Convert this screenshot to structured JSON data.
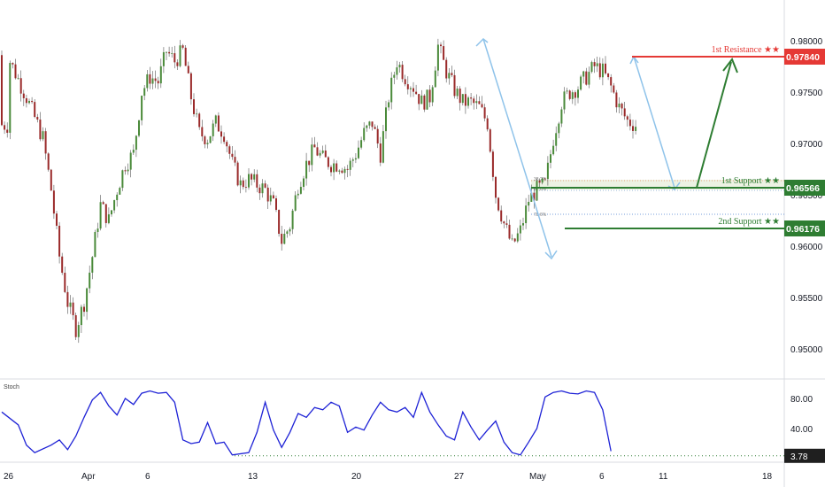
{
  "chart_data": [
    {
      "type": "candlestick",
      "title": "",
      "y_ticks": [
        "0.98000",
        "0.97500",
        "0.97000",
        "0.96500",
        "0.96000",
        "0.95500",
        "0.95000"
      ],
      "ylim": [
        0.947,
        0.9827
      ],
      "x_ticks": [
        "26",
        "Apr",
        "6",
        "13",
        "20",
        "27",
        "May",
        "6",
        "11",
        "18"
      ],
      "grid": false,
      "series": [
        {
          "values": [
            {
              "x": 1,
              "y": 0.978
            },
            {
              "x": 3,
              "y": 0.9745
            },
            {
              "x": 5,
              "y": 0.9705
            },
            {
              "x": 6,
              "y": 0.9655
            },
            {
              "x": 7,
              "y": 0.959
            },
            {
              "x": 8,
              "y": 0.9545
            },
            {
              "x": 9,
              "y": 0.952
            },
            {
              "x": 10,
              "y": 0.9545
            },
            {
              "x": 11,
              "y": 0.959
            },
            {
              "x": 12,
              "y": 0.964
            },
            {
              "x": 13,
              "y": 0.9625
            },
            {
              "x": 14,
              "y": 0.9655
            },
            {
              "x": 15,
              "y": 0.968
            },
            {
              "x": 16,
              "y": 0.969
            },
            {
              "x": 17,
              "y": 0.975
            },
            {
              "x": 18,
              "y": 0.9765
            },
            {
              "x": 19,
              "y": 0.976
            },
            {
              "x": 20,
              "y": 0.979
            },
            {
              "x": 21,
              "y": 0.978
            },
            {
              "x": 22,
              "y": 0.979
            },
            {
              "x": 23,
              "y": 0.9745
            },
            {
              "x": 24,
              "y": 0.971
            },
            {
              "x": 25,
              "y": 0.9705
            },
            {
              "x": 26,
              "y": 0.972
            },
            {
              "x": 27,
              "y": 0.971
            },
            {
              "x": 28,
              "y": 0.968
            },
            {
              "x": 29,
              "y": 0.966
            },
            {
              "x": 30,
              "y": 0.9665
            },
            {
              "x": 31,
              "y": 0.966
            },
            {
              "x": 32,
              "y": 0.9655
            },
            {
              "x": 33,
              "y": 0.964
            },
            {
              "x": 34,
              "y": 0.9605
            },
            {
              "x": 35,
              "y": 0.962
            },
            {
              "x": 36,
              "y": 0.966
            },
            {
              "x": 37,
              "y": 0.968
            },
            {
              "x": 38,
              "y": 0.9695
            },
            {
              "x": 39,
              "y": 0.9685
            },
            {
              "x": 40,
              "y": 0.968
            },
            {
              "x": 41,
              "y": 0.968
            },
            {
              "x": 42,
              "y": 0.9675
            },
            {
              "x": 43,
              "y": 0.969
            },
            {
              "x": 44,
              "y": 0.971
            },
            {
              "x": 45,
              "y": 0.972
            },
            {
              "x": 46,
              "y": 0.969
            },
            {
              "x": 47,
              "y": 0.9745
            },
            {
              "x": 48,
              "y": 0.978
            },
            {
              "x": 49,
              "y": 0.9765
            },
            {
              "x": 50,
              "y": 0.9755
            },
            {
              "x": 51,
              "y": 0.974
            },
            {
              "x": 52,
              "y": 0.9745
            },
            {
              "x": 53,
              "y": 0.9795
            },
            {
              "x": 54,
              "y": 0.977
            },
            {
              "x": 55,
              "y": 0.9752
            },
            {
              "x": 56,
              "y": 0.974
            },
            {
              "x": 57,
              "y": 0.974
            },
            {
              "x": 58,
              "y": 0.9735
            },
            {
              "x": 59,
              "y": 0.972
            },
            {
              "x": 60,
              "y": 0.965
            },
            {
              "x": 61,
              "y": 0.9622
            },
            {
              "x": 62,
              "y": 0.96
            },
            {
              "x": 63,
              "y": 0.9615
            },
            {
              "x": 64,
              "y": 0.9645
            },
            {
              "x": 65,
              "y": 0.9655
            },
            {
              "x": 66,
              "y": 0.966
            },
            {
              "x": 67,
              "y": 0.9705
            },
            {
              "x": 68,
              "y": 0.974
            },
            {
              "x": 69,
              "y": 0.975
            },
            {
              "x": 70,
              "y": 0.9755
            },
            {
              "x": 71,
              "y": 0.9765
            },
            {
              "x": 72,
              "y": 0.9775
            },
            {
              "x": 73,
              "y": 0.977
            },
            {
              "x": 74,
              "y": 0.9755
            },
            {
              "x": 75,
              "y": 0.9735
            },
            {
              "x": 76,
              "y": 0.9722
            },
            {
              "x": 77,
              "y": 0.9718
            }
          ]
        }
      ],
      "levels": [
        {
          "name": "1st Resistance",
          "stars": "★★",
          "value": "0.97840",
          "color": "#e53935"
        },
        {
          "name": "1st Support",
          "stars": "★★",
          "value": "0.96566",
          "color": "#2e7d32"
        },
        {
          "name": "2nd Support",
          "stars": "★★",
          "value": "0.96176",
          "color": "#2e7d32"
        }
      ],
      "fib_labels": [
        "38.2%",
        "61.8%",
        "78.6%"
      ]
    },
    {
      "type": "line",
      "title": "Stoch",
      "y_ticks": [
        "80.00",
        "40.00"
      ],
      "ylim": [
        0,
        100
      ],
      "current_value": "3.78",
      "series": [
        {
          "color": "#1e22d6",
          "values": [
            {
              "x": 0,
              "y": 62
            },
            {
              "x": 2,
              "y": 45
            },
            {
              "x": 3,
              "y": 18
            },
            {
              "x": 4,
              "y": 8
            },
            {
              "x": 6,
              "y": 18
            },
            {
              "x": 7,
              "y": 25
            },
            {
              "x": 8,
              "y": 12
            },
            {
              "x": 9,
              "y": 30
            },
            {
              "x": 10,
              "y": 55
            },
            {
              "x": 11,
              "y": 78
            },
            {
              "x": 12,
              "y": 88
            },
            {
              "x": 13,
              "y": 70
            },
            {
              "x": 14,
              "y": 58
            },
            {
              "x": 15,
              "y": 80
            },
            {
              "x": 16,
              "y": 72
            },
            {
              "x": 17,
              "y": 87
            },
            {
              "x": 18,
              "y": 90
            },
            {
              "x": 19,
              "y": 87
            },
            {
              "x": 20,
              "y": 88
            },
            {
              "x": 21,
              "y": 75
            },
            {
              "x": 22,
              "y": 25
            },
            {
              "x": 23,
              "y": 20
            },
            {
              "x": 24,
              "y": 22
            },
            {
              "x": 25,
              "y": 48
            },
            {
              "x": 26,
              "y": 20
            },
            {
              "x": 27,
              "y": 22
            },
            {
              "x": 28,
              "y": 5
            },
            {
              "x": 30,
              "y": 8
            },
            {
              "x": 31,
              "y": 35
            },
            {
              "x": 32,
              "y": 75
            },
            {
              "x": 33,
              "y": 38
            },
            {
              "x": 34,
              "y": 15
            },
            {
              "x": 35,
              "y": 35
            },
            {
              "x": 36,
              "y": 60
            },
            {
              "x": 37,
              "y": 55
            },
            {
              "x": 38,
              "y": 68
            },
            {
              "x": 39,
              "y": 65
            },
            {
              "x": 40,
              "y": 75
            },
            {
              "x": 41,
              "y": 70
            },
            {
              "x": 42,
              "y": 35
            },
            {
              "x": 43,
              "y": 42
            },
            {
              "x": 44,
              "y": 38
            },
            {
              "x": 45,
              "y": 58
            },
            {
              "x": 46,
              "y": 75
            },
            {
              "x": 47,
              "y": 65
            },
            {
              "x": 48,
              "y": 62
            },
            {
              "x": 49,
              "y": 68
            },
            {
              "x": 50,
              "y": 55
            },
            {
              "x": 51,
              "y": 88
            },
            {
              "x": 52,
              "y": 62
            },
            {
              "x": 53,
              "y": 45
            },
            {
              "x": 54,
              "y": 30
            },
            {
              "x": 55,
              "y": 25
            },
            {
              "x": 56,
              "y": 62
            },
            {
              "x": 57,
              "y": 42
            },
            {
              "x": 58,
              "y": 25
            },
            {
              "x": 59,
              "y": 38
            },
            {
              "x": 60,
              "y": 50
            },
            {
              "x": 61,
              "y": 22
            },
            {
              "x": 62,
              "y": 8
            },
            {
              "x": 63,
              "y": 5
            },
            {
              "x": 64,
              "y": 22
            },
            {
              "x": 65,
              "y": 40
            },
            {
              "x": 66,
              "y": 82
            },
            {
              "x": 67,
              "y": 88
            },
            {
              "x": 68,
              "y": 90
            },
            {
              "x": 69,
              "y": 87
            },
            {
              "x": 70,
              "y": 86
            },
            {
              "x": 71,
              "y": 90
            },
            {
              "x": 72,
              "y": 88
            },
            {
              "x": 73,
              "y": 65
            },
            {
              "x": 74,
              "y": 10
            }
          ]
        }
      ]
    }
  ]
}
